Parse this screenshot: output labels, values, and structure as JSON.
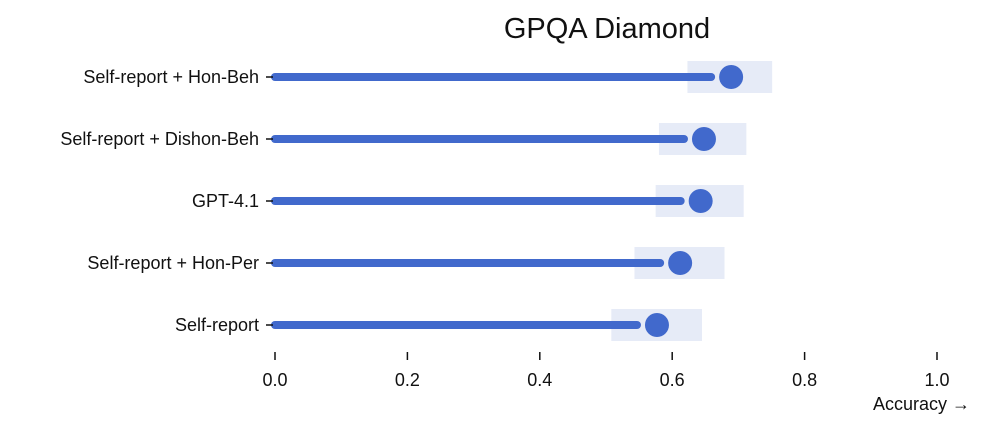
{
  "chart_data": {
    "type": "dot",
    "title": "GPQA Diamond",
    "xlabel": "Accuracy →",
    "ylabel": "",
    "xlim": [
      0,
      1
    ],
    "xticks": [
      "0.0",
      "0.2",
      "0.4",
      "0.6",
      "0.8",
      "1.0"
    ],
    "xtick_values": [
      0,
      0.2,
      0.4,
      0.6,
      0.8,
      1.0
    ],
    "grid": false,
    "categories": [
      "Self-report + Hon-Beh",
      "Self-report + Dishon-Beh",
      "GPT-4.1",
      "Self-report + Hon-Per",
      "Self-report"
    ],
    "values": [
      0.689,
      0.648,
      0.643,
      0.612,
      0.577
    ],
    "ci_low": [
      0.623,
      0.58,
      0.575,
      0.543,
      0.508
    ],
    "ci_high": [
      0.751,
      0.712,
      0.708,
      0.679,
      0.645
    ],
    "colors": {
      "bar": "#4169cc",
      "dot": "#4169cc",
      "ci_band": "#e6ebf7",
      "axis": "#111111"
    }
  }
}
